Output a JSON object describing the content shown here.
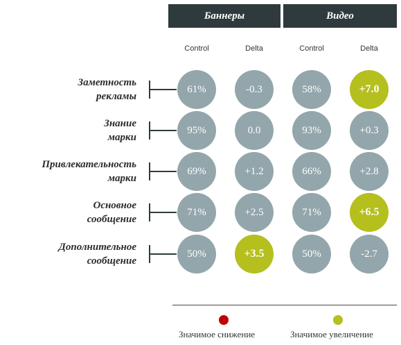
{
  "chart_data": {
    "type": "table",
    "groups": [
      "Баннеры",
      "Видео"
    ],
    "columns": [
      "Control",
      "Delta",
      "Control",
      "Delta"
    ],
    "rows": [
      {
        "label_lines": [
          "Заметность",
          "рекламы"
        ],
        "values": [
          "61%",
          "-0.3",
          "58%",
          "+7.0"
        ],
        "significance": [
          "none",
          "none",
          "none",
          "up"
        ]
      },
      {
        "label_lines": [
          "Знание",
          "марки"
        ],
        "values": [
          "95%",
          "0.0",
          "93%",
          "+0.3"
        ],
        "significance": [
          "none",
          "none",
          "none",
          "none"
        ]
      },
      {
        "label_lines": [
          "Привлекательность",
          "марки"
        ],
        "values": [
          "69%",
          "+1.2",
          "66%",
          "+2.8"
        ],
        "significance": [
          "none",
          "none",
          "none",
          "none"
        ]
      },
      {
        "label_lines": [
          "Основное",
          "сообщение"
        ],
        "values": [
          "71%",
          "+2.5",
          "71%",
          "+6.5"
        ],
        "significance": [
          "none",
          "none",
          "none",
          "up"
        ]
      },
      {
        "label_lines": [
          "Дополнительное",
          "сообщение"
        ],
        "values": [
          "50%",
          "+3.5",
          "50%",
          "-2.7"
        ],
        "significance": [
          "none",
          "up",
          "none",
          "none"
        ]
      }
    ],
    "legend": [
      {
        "label": "Значимое снижение",
        "color": "#c00000"
      },
      {
        "label": "Значимое увеличение",
        "color": "#b5bf1e"
      }
    ],
    "colors": {
      "neutral": "#93a6ab",
      "header": "#2f3a3c"
    }
  }
}
